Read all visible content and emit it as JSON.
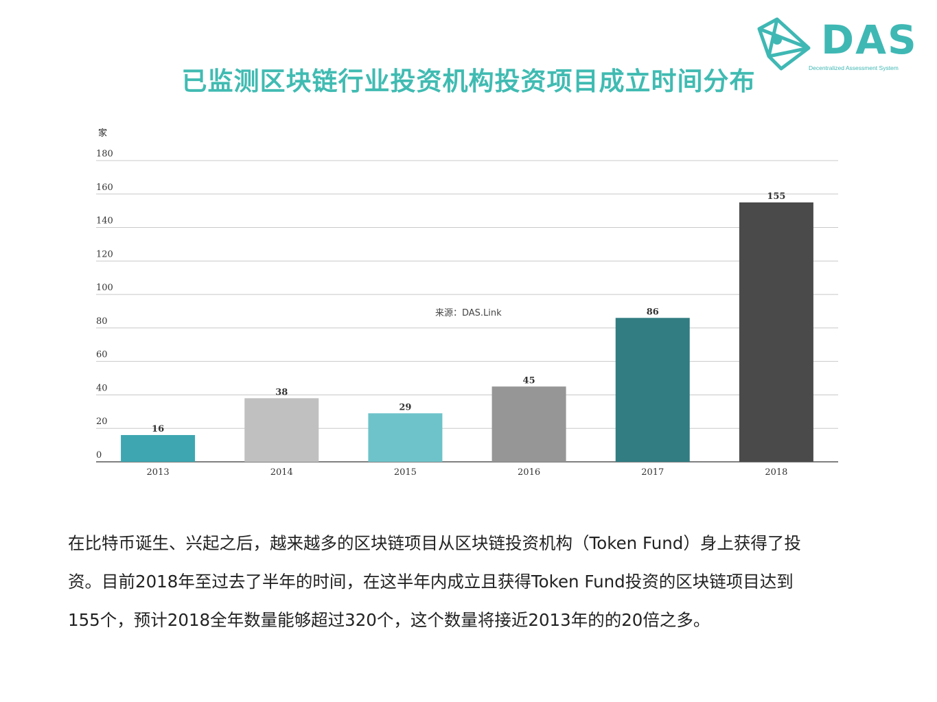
{
  "logo": {
    "name": "DAS",
    "subtitle": "Decentralized Assessment System",
    "color": "#3fb8b4"
  },
  "title": "已监测区块链行业投资机构投资项目成立时间分布",
  "chart_data": {
    "type": "bar",
    "title": "已监测区块链行业投资机构投资项目成立时间分布",
    "ylabel": "家",
    "xlabel": "",
    "categories": [
      "2013",
      "2014",
      "2015",
      "2016",
      "2017",
      "2018"
    ],
    "values": [
      16,
      38,
      29,
      45,
      86,
      155
    ],
    "bar_colors": [
      "#3da6b1",
      "#c0c0c0",
      "#6ec3ca",
      "#969696",
      "#317d82",
      "#4a4a4a"
    ],
    "ylim": [
      0,
      180
    ],
    "yticks": [
      "0",
      "20",
      "40",
      "60",
      "80",
      "100",
      "120",
      "140",
      "160",
      "180"
    ],
    "grid": true,
    "annotation": "来源：DAS.Link"
  },
  "paragraph": [
    "在比特币诞生、兴起之后，越来越多的区块链项目从区块链投资机构（Token Fund）身上获得了投",
    "资。目前2018年至过去了半年的时间，在这半年内成立且获得Token Fund投资的区块链项目达到",
    "155个，预计2018全年数量能够超过320个，这个数量将接近2013年的的20倍之多。"
  ]
}
